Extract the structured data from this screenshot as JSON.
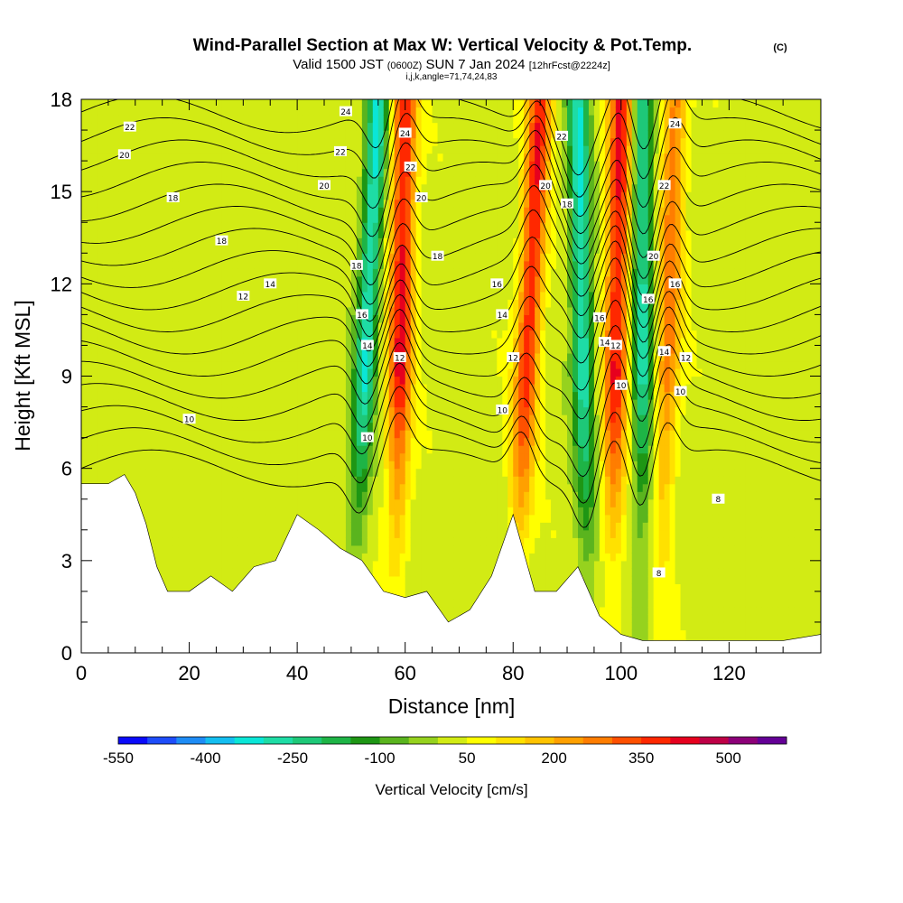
{
  "chart_data": {
    "type": "heatmap",
    "title": "Wind-Parallel Section at Max W: Vertical Velocity & Pot.Temp.",
    "copyright_mark": "(C)",
    "subtitle_parts": {
      "valid_prefix": "Valid 1500 JST",
      "utc": "(0600Z)",
      "date": "SUN 7 Jan 2024",
      "forecast": "[12hrFcst@2224z]"
    },
    "subtitle2": "i,j,k,angle=71,74,24,83",
    "xlabel": "Distance [nm]",
    "ylabel": "Height [Kft MSL]",
    "xlim": [
      0,
      137
    ],
    "ylim": [
      0,
      18
    ],
    "x_ticks": [
      0,
      20,
      40,
      60,
      80,
      100,
      120
    ],
    "y_ticks": [
      0,
      3,
      6,
      9,
      12,
      15,
      18
    ],
    "grid": false,
    "shaded_field": "Vertical Velocity",
    "colorbar": {
      "label": "Vertical Velocity [cm/s]",
      "tick_labels": [
        "-550",
        "-400",
        "-250",
        "-100",
        "50",
        "200",
        "350",
        "500"
      ],
      "levels": [
        -550,
        -500,
        -450,
        -400,
        -350,
        -300,
        -250,
        -200,
        -150,
        -100,
        -50,
        0,
        50,
        100,
        150,
        200,
        250,
        300,
        350,
        400,
        450,
        500,
        550
      ],
      "colors": [
        "#0a0afa",
        "#1e4dfa",
        "#1e8cf5",
        "#14bef0",
        "#0ae6d7",
        "#1edca5",
        "#1ec878",
        "#1eb446",
        "#1e9614",
        "#5ab41e",
        "#96d21e",
        "#d2eb14",
        "#ffff00",
        "#ffe100",
        "#ffc300",
        "#ffa000",
        "#ff7d00",
        "#ff5000",
        "#ff2800",
        "#e6001e",
        "#be0046",
        "#8c0078",
        "#640096"
      ]
    },
    "updraft_bands_nm": [
      {
        "x_top": 60,
        "x_bottom": 58,
        "w_cm_s": 380
      },
      {
        "x_top": 85,
        "x_bottom": 80,
        "w_cm_s": 360
      },
      {
        "x_top": 100,
        "x_bottom": 98,
        "w_cm_s": 380
      },
      {
        "x_top": 110,
        "x_bottom": 107,
        "w_cm_s": 250
      }
    ],
    "downdraft_bands_nm": [
      {
        "x_top": 55,
        "x_bottom": 50,
        "w_cm_s": -330
      },
      {
        "x_top": 92,
        "x_bottom": 94,
        "w_cm_s": -330
      },
      {
        "x_top": 104,
        "x_bottom": 104,
        "w_cm_s": -300
      }
    ],
    "terrain_kft": {
      "x": [
        0,
        5,
        8,
        10,
        12,
        14,
        16,
        20,
        24,
        28,
        32,
        36,
        40,
        44,
        48,
        52,
        56,
        60,
        64,
        68,
        72,
        76,
        80,
        84,
        88,
        92,
        96,
        100,
        104,
        110,
        120,
        130,
        137
      ],
      "h": [
        5.5,
        5.5,
        5.8,
        5.2,
        4.2,
        2.8,
        2.0,
        2.0,
        2.5,
        2.0,
        2.8,
        3.0,
        4.5,
        4.0,
        3.4,
        3.0,
        2.0,
        1.8,
        2.0,
        1.0,
        1.4,
        2.5,
        4.5,
        2.0,
        2.0,
        2.8,
        1.2,
        0.6,
        0.4,
        0.4,
        0.4,
        0.4,
        0.6
      ]
    },
    "theta_contours": {
      "series_name": "Pot.Temp.",
      "levels": [
        8,
        9,
        10,
        11,
        12,
        13,
        14,
        15,
        16,
        17,
        18,
        19,
        20,
        21,
        22,
        23,
        24
      ],
      "labels": [
        {
          "text": "8",
          "x": 118,
          "y": 5.0
        },
        {
          "text": "8",
          "x": 107,
          "y": 2.6
        },
        {
          "text": "10",
          "x": 20,
          "y": 7.6
        },
        {
          "text": "10",
          "x": 53,
          "y": 7.0
        },
        {
          "text": "10",
          "x": 78,
          "y": 7.9
        },
        {
          "text": "10",
          "x": 100,
          "y": 8.7
        },
        {
          "text": "10",
          "x": 111,
          "y": 8.5
        },
        {
          "text": "12",
          "x": 30,
          "y": 11.6
        },
        {
          "text": "12",
          "x": 59,
          "y": 9.6
        },
        {
          "text": "12",
          "x": 80,
          "y": 9.6
        },
        {
          "text": "12",
          "x": 99,
          "y": 10.0
        },
        {
          "text": "12",
          "x": 112,
          "y": 9.6
        },
        {
          "text": "14",
          "x": 35,
          "y": 12.0
        },
        {
          "text": "14",
          "x": 53,
          "y": 10.0
        },
        {
          "text": "14",
          "x": 78,
          "y": 11.0
        },
        {
          "text": "14",
          "x": 97,
          "y": 10.1
        },
        {
          "text": "14",
          "x": 108,
          "y": 9.8
        },
        {
          "text": "16",
          "x": 52,
          "y": 11.0
        },
        {
          "text": "16",
          "x": 77,
          "y": 12.0
        },
        {
          "text": "16",
          "x": 96,
          "y": 10.9
        },
        {
          "text": "16",
          "x": 110,
          "y": 12.0
        },
        {
          "text": "16",
          "x": 105,
          "y": 11.5
        },
        {
          "text": "18",
          "x": 17,
          "y": 14.8
        },
        {
          "text": "18",
          "x": 26,
          "y": 13.4
        },
        {
          "text": "18",
          "x": 51,
          "y": 12.6
        },
        {
          "text": "18",
          "x": 66,
          "y": 12.9
        },
        {
          "text": "18",
          "x": 90,
          "y": 14.6
        },
        {
          "text": "20",
          "x": 8,
          "y": 16.2
        },
        {
          "text": "20",
          "x": 45,
          "y": 15.2
        },
        {
          "text": "20",
          "x": 63,
          "y": 14.8
        },
        {
          "text": "20",
          "x": 86,
          "y": 15.2
        },
        {
          "text": "20",
          "x": 106,
          "y": 12.9
        },
        {
          "text": "22",
          "x": 9,
          "y": 17.1
        },
        {
          "text": "22",
          "x": 48,
          "y": 16.3
        },
        {
          "text": "22",
          "x": 61,
          "y": 15.8
        },
        {
          "text": "22",
          "x": 89,
          "y": 16.8
        },
        {
          "text": "22",
          "x": 108,
          "y": 15.2
        },
        {
          "text": "24",
          "x": 49,
          "y": 17.6
        },
        {
          "text": "24",
          "x": 60,
          "y": 16.9
        },
        {
          "text": "24",
          "x": 110,
          "y": 17.2
        }
      ]
    }
  }
}
